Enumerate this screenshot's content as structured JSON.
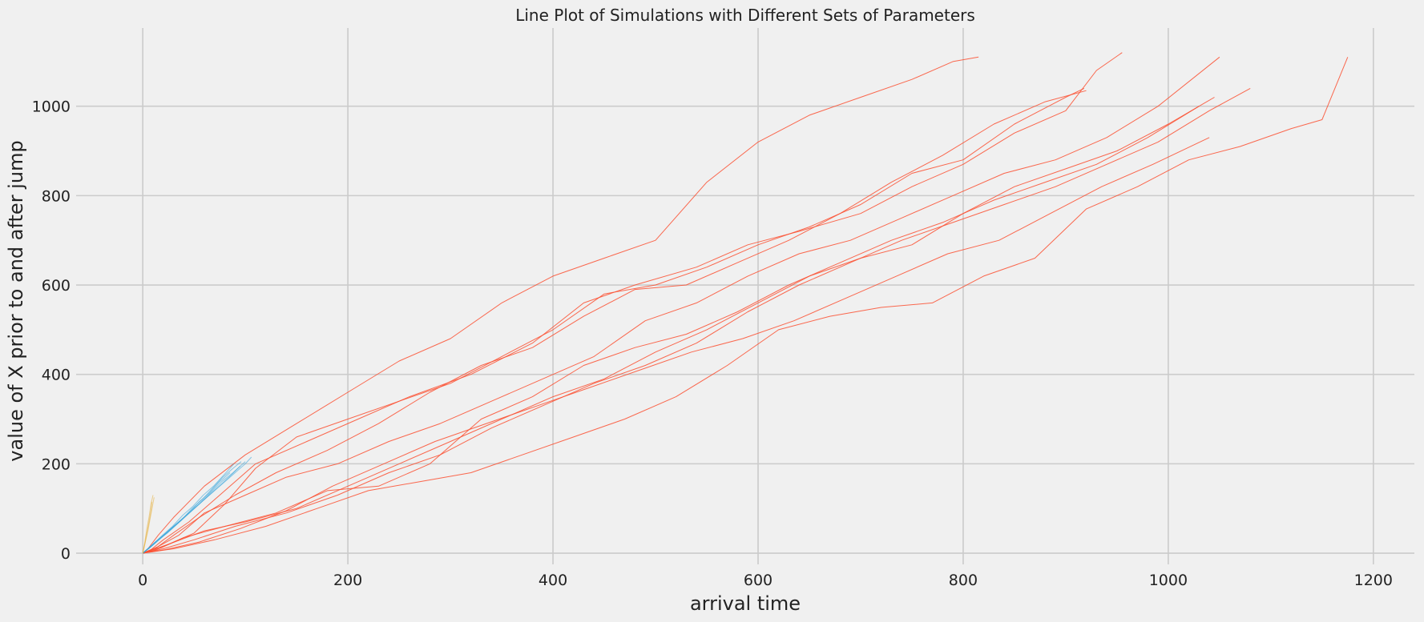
{
  "chart_data": {
    "type": "line",
    "title": "Line Plot of Simulations with Different Sets of Parameters",
    "xlabel": "arrival time",
    "ylabel": "value of X prior to and after jump",
    "xlim": [
      -65,
      1240
    ],
    "ylim": [
      -25,
      1175
    ],
    "xticks": [
      0,
      200,
      400,
      600,
      800,
      1000,
      1200
    ],
    "yticks": [
      0,
      200,
      400,
      600,
      800,
      1000
    ],
    "grid": true,
    "legend": "none",
    "colors": {
      "group_a": "#fc4f30",
      "group_b": "#30a2da",
      "group_c": "#e5ae38"
    },
    "series": [
      {
        "group": "group_a",
        "x": [
          0,
          5,
          15,
          30,
          60,
          100,
          150,
          200,
          250,
          300,
          350,
          400,
          450,
          500,
          550,
          600,
          650,
          700,
          750,
          790,
          815
        ],
        "y": [
          0,
          10,
          40,
          80,
          150,
          220,
          290,
          360,
          430,
          480,
          560,
          620,
          660,
          700,
          830,
          920,
          980,
          1020,
          1060,
          1100,
          1110
        ]
      },
      {
        "group": "group_a",
        "x": [
          0,
          10,
          25,
          50,
          80,
          110,
          150,
          200,
          250,
          300,
          350,
          400,
          450,
          500,
          550,
          600,
          650,
          700,
          750,
          800,
          850,
          900,
          918
        ],
        "y": [
          0,
          5,
          20,
          45,
          110,
          190,
          260,
          300,
          340,
          380,
          440,
          500,
          580,
          600,
          640,
          690,
          730,
          780,
          850,
          880,
          960,
          1020,
          1040
        ]
      },
      {
        "group": "group_a",
        "x": [
          0,
          8,
          20,
          45,
          75,
          110,
          160,
          210,
          260,
          320,
          380,
          430,
          480,
          540,
          590,
          640,
          700,
          750,
          800,
          850,
          900,
          930,
          955
        ],
        "y": [
          0,
          8,
          30,
          70,
          130,
          200,
          250,
          300,
          350,
          400,
          470,
          560,
          600,
          640,
          690,
          720,
          760,
          820,
          870,
          940,
          990,
          1080,
          1120
        ]
      },
      {
        "group": "group_a",
        "x": [
          0,
          12,
          30,
          55,
          90,
          130,
          180,
          230,
          280,
          330,
          380,
          430,
          480,
          530,
          580,
          630,
          680,
          730,
          780,
          830,
          880,
          920
        ],
        "y": [
          0,
          10,
          40,
          80,
          130,
          180,
          230,
          290,
          360,
          420,
          460,
          530,
          590,
          600,
          650,
          700,
          760,
          830,
          890,
          960,
          1010,
          1035
        ]
      },
      {
        "group": "group_a",
        "x": [
          0,
          15,
          35,
          60,
          100,
          140,
          190,
          240,
          290,
          340,
          390,
          440,
          490,
          540,
          590,
          640,
          690,
          740,
          790,
          840,
          890,
          940,
          990,
          1050
        ],
        "y": [
          0,
          15,
          40,
          90,
          130,
          170,
          200,
          250,
          290,
          340,
          390,
          440,
          520,
          560,
          620,
          670,
          700,
          750,
          800,
          850,
          880,
          930,
          1000,
          1110
        ]
      },
      {
        "group": "group_a",
        "x": [
          0,
          20,
          50,
          90,
          140,
          190,
          240,
          290,
          340,
          390,
          440,
          490,
          540,
          590,
          640,
          690,
          740,
          790,
          840,
          890,
          940,
          990,
          1040,
          1080
        ],
        "y": [
          0,
          10,
          30,
          60,
          90,
          130,
          180,
          220,
          280,
          330,
          380,
          420,
          470,
          540,
          600,
          650,
          700,
          740,
          780,
          820,
          870,
          920,
          990,
          1040
        ]
      },
      {
        "group": "group_a",
        "x": [
          0,
          25,
          60,
          100,
          150,
          200,
          250,
          300,
          350,
          400,
          450,
          500,
          550,
          600,
          650,
          700,
          750,
          800,
          850,
          900,
          950,
          1000,
          1045
        ],
        "y": [
          0,
          20,
          50,
          70,
          100,
          150,
          200,
          250,
          300,
          350,
          390,
          450,
          500,
          560,
          620,
          660,
          690,
          760,
          820,
          860,
          900,
          960,
          1020
        ]
      },
      {
        "group": "group_a",
        "x": [
          0,
          18,
          40,
          80,
          130,
          180,
          230,
          280,
          330,
          380,
          430,
          480,
          530,
          580,
          630,
          680,
          730,
          780,
          830,
          880,
          930,
          980,
          1030
        ],
        "y": [
          0,
          12,
          35,
          60,
          90,
          140,
          150,
          200,
          300,
          350,
          420,
          460,
          490,
          540,
          600,
          650,
          700,
          740,
          790,
          830,
          870,
          930,
          1000
        ]
      },
      {
        "group": "group_a",
        "x": [
          0,
          30,
          70,
          120,
          170,
          220,
          270,
          320,
          370,
          420,
          470,
          520,
          570,
          620,
          670,
          720,
          770,
          820,
          870,
          920,
          970,
          1020,
          1070,
          1120,
          1150,
          1175
        ],
        "y": [
          0,
          10,
          30,
          60,
          100,
          140,
          160,
          180,
          220,
          260,
          300,
          350,
          420,
          500,
          530,
          550,
          560,
          620,
          660,
          770,
          820,
          880,
          910,
          950,
          970,
          1110
        ]
      },
      {
        "group": "group_a",
        "x": [
          0,
          22,
          55,
          95,
          140,
          185,
          235,
          285,
          335,
          385,
          435,
          485,
          535,
          585,
          635,
          685,
          735,
          785,
          835,
          885,
          935,
          985,
          1040
        ],
        "y": [
          0,
          8,
          25,
          55,
          95,
          150,
          200,
          250,
          290,
          330,
          370,
          410,
          450,
          480,
          520,
          570,
          620,
          670,
          700,
          760,
          820,
          870,
          930
        ]
      },
      {
        "group": "group_b",
        "x": [
          0,
          10,
          20,
          30,
          40,
          50,
          60,
          70,
          80,
          90,
          100,
          106
        ],
        "y": [
          0,
          20,
          40,
          60,
          80,
          100,
          120,
          140,
          160,
          180,
          200,
          215
        ]
      },
      {
        "group": "group_b",
        "x": [
          0,
          8,
          18,
          28,
          38,
          48,
          58,
          68,
          78,
          88,
          96
        ],
        "y": [
          0,
          15,
          35,
          55,
          75,
          100,
          120,
          145,
          170,
          190,
          205
        ]
      },
      {
        "group": "group_b",
        "x": [
          0,
          12,
          24,
          36,
          48,
          60,
          72,
          84,
          95
        ],
        "y": [
          0,
          25,
          45,
          70,
          95,
          120,
          145,
          170,
          195
        ]
      },
      {
        "group": "group_b",
        "x": [
          0,
          9,
          19,
          29,
          39,
          49,
          59,
          69,
          79,
          89
        ],
        "y": [
          0,
          18,
          40,
          60,
          85,
          105,
          130,
          150,
          175,
          200
        ]
      },
      {
        "group": "group_b",
        "x": [
          0,
          11,
          22,
          33,
          44,
          55,
          66,
          77,
          88,
          100
        ],
        "y": [
          0,
          20,
          42,
          65,
          88,
          110,
          135,
          160,
          180,
          205
        ]
      },
      {
        "group": "group_b",
        "x": [
          0,
          7,
          15,
          25,
          35,
          45,
          55,
          65,
          75,
          85
        ],
        "y": [
          0,
          12,
          30,
          50,
          70,
          90,
          115,
          135,
          160,
          180
        ]
      },
      {
        "group": "group_c",
        "x": [
          0,
          2,
          4,
          6,
          8,
          10
        ],
        "y": [
          0,
          25,
          55,
          80,
          110,
          130
        ]
      },
      {
        "group": "group_c",
        "x": [
          0,
          2,
          4,
          6,
          8,
          9
        ],
        "y": [
          0,
          20,
          45,
          70,
          95,
          115
        ]
      },
      {
        "group": "group_c",
        "x": [
          0,
          3,
          5,
          7,
          9,
          11
        ],
        "y": [
          0,
          30,
          50,
          75,
          100,
          125
        ]
      }
    ]
  }
}
